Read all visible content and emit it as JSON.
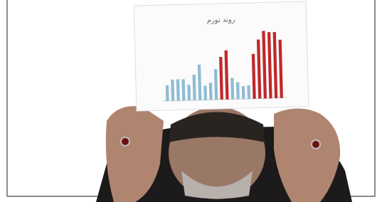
{
  "chart_data": {
    "type": "bar",
    "title": "روند تورم",
    "values": [
      22,
      30,
      30,
      30,
      22,
      36,
      50,
      20,
      24,
      43,
      60,
      69,
      30,
      24,
      18,
      19,
      63,
      83,
      95,
      93,
      93,
      82
    ],
    "colors": [
      "#8fbcd4",
      "#8fbcd4",
      "#8fbcd4",
      "#8fbcd4",
      "#8fbcd4",
      "#8fbcd4",
      "#8fbcd4",
      "#8fbcd4",
      "#8fbcd4",
      "#8fbcd4",
      "#c0282b",
      "#c0282b",
      "#8fbcd4",
      "#8fbcd4",
      "#8fbcd4",
      "#8fbcd4",
      "#c0282b",
      "#c0282b",
      "#c0282b",
      "#c0282b",
      "#c0282b",
      "#c0282b"
    ],
    "ylim": [
      0,
      100
    ]
  }
}
